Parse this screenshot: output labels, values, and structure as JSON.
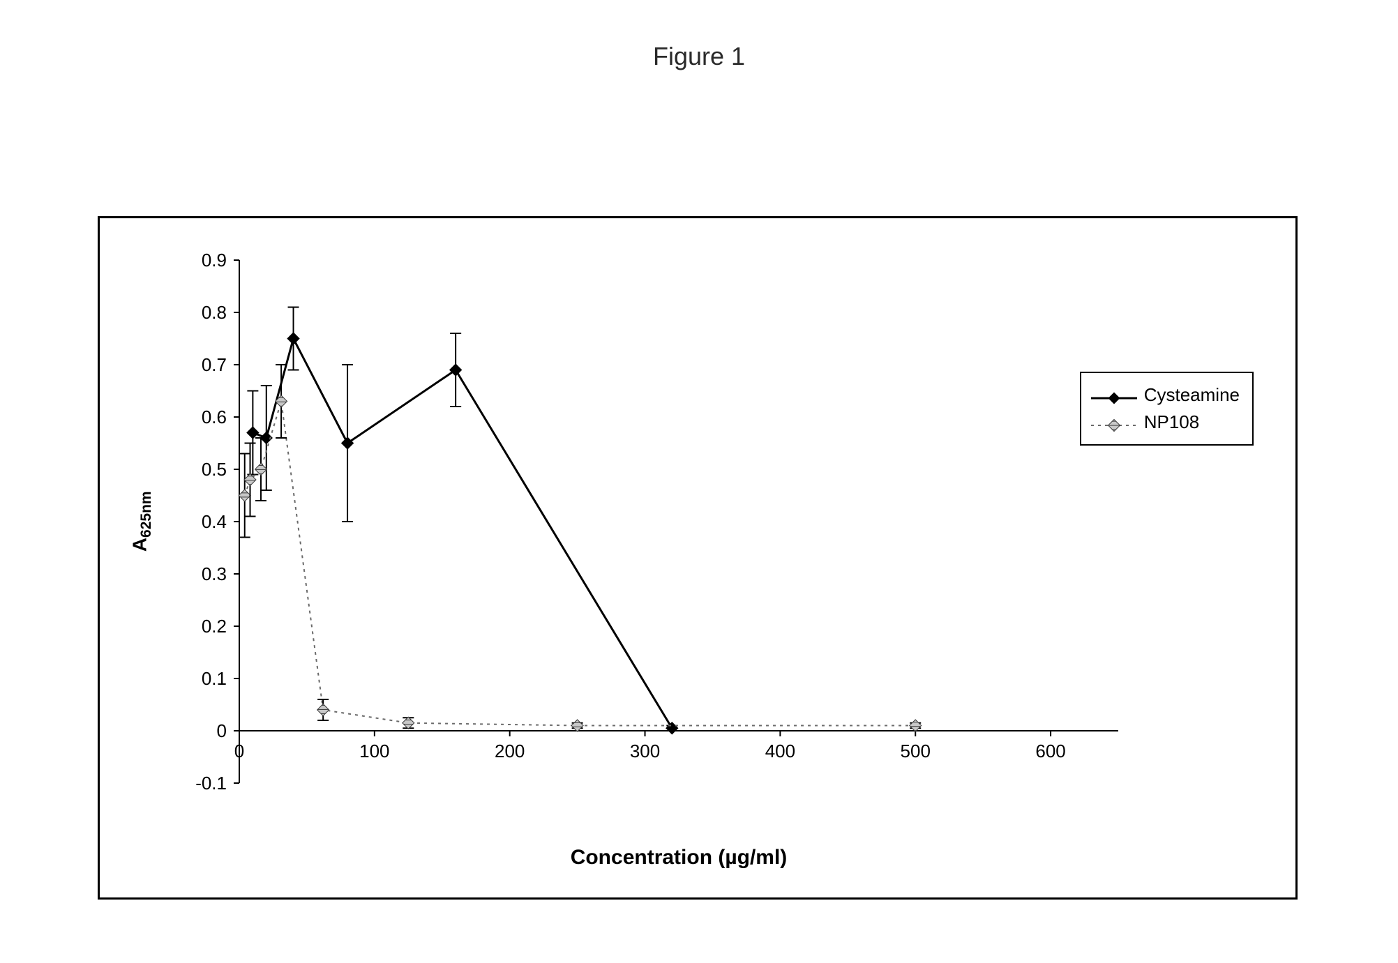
{
  "figure_title": "Figure 1",
  "chart": {
    "type": "line",
    "x_axis": {
      "label": "Concentration (µg/ml)",
      "min": 0,
      "max": 650,
      "ticks": [
        0,
        100,
        200,
        300,
        400,
        500,
        600
      ],
      "label_fontsize": 30,
      "label_fontweight": "bold",
      "tick_fontsize": 26
    },
    "y_axis": {
      "label_html": "A<sub>625nm</sub>",
      "label_plain": "A625nm",
      "min": -0.1,
      "max": 0.9,
      "ticks": [
        -0.1,
        0,
        0.1,
        0.2,
        0.3,
        0.4,
        0.5,
        0.6,
        0.7,
        0.8,
        0.9
      ],
      "label_fontsize": 28,
      "label_fontweight": "bold",
      "tick_fontsize": 26
    },
    "background_color": "#ffffff",
    "axis_color": "#000000",
    "tick_length": 8,
    "plot_border": false,
    "series": [
      {
        "name": "Cysteamine",
        "color": "#000000",
        "line_width": 3,
        "line_dash": "none",
        "marker": "diamond",
        "marker_size": 12,
        "marker_fill": "#000000",
        "data": [
          {
            "x": 10,
            "y": 0.57,
            "err": 0.08
          },
          {
            "x": 20,
            "y": 0.56,
            "err": 0.1
          },
          {
            "x": 40,
            "y": 0.75,
            "err": 0.06
          },
          {
            "x": 80,
            "y": 0.55,
            "err": 0.15
          },
          {
            "x": 160,
            "y": 0.69,
            "err": 0.07
          },
          {
            "x": 320,
            "y": 0.005,
            "err": 0.005
          }
        ]
      },
      {
        "name": "NP108",
        "color": "#6b6b6b",
        "line_width": 2,
        "line_dash": "4 6",
        "marker": "hatched-square",
        "marker_size": 12,
        "marker_fill": "#9a9a9a",
        "hatch_color": "#3a3a3a",
        "data": [
          {
            "x": 4,
            "y": 0.45,
            "err": 0.08
          },
          {
            "x": 8,
            "y": 0.48,
            "err": 0.07
          },
          {
            "x": 16,
            "y": 0.5,
            "err": 0.06
          },
          {
            "x": 31,
            "y": 0.63,
            "err": 0.07
          },
          {
            "x": 62,
            "y": 0.04,
            "err": 0.02
          },
          {
            "x": 125,
            "y": 0.015,
            "err": 0.01
          },
          {
            "x": 250,
            "y": 0.01,
            "err": 0.005
          },
          {
            "x": 500,
            "y": 0.01,
            "err": 0.005
          }
        ]
      }
    ],
    "legend": {
      "position": "right",
      "border_color": "#000000",
      "border_width": 2,
      "background": "#ffffff",
      "fontsize": 26
    }
  }
}
